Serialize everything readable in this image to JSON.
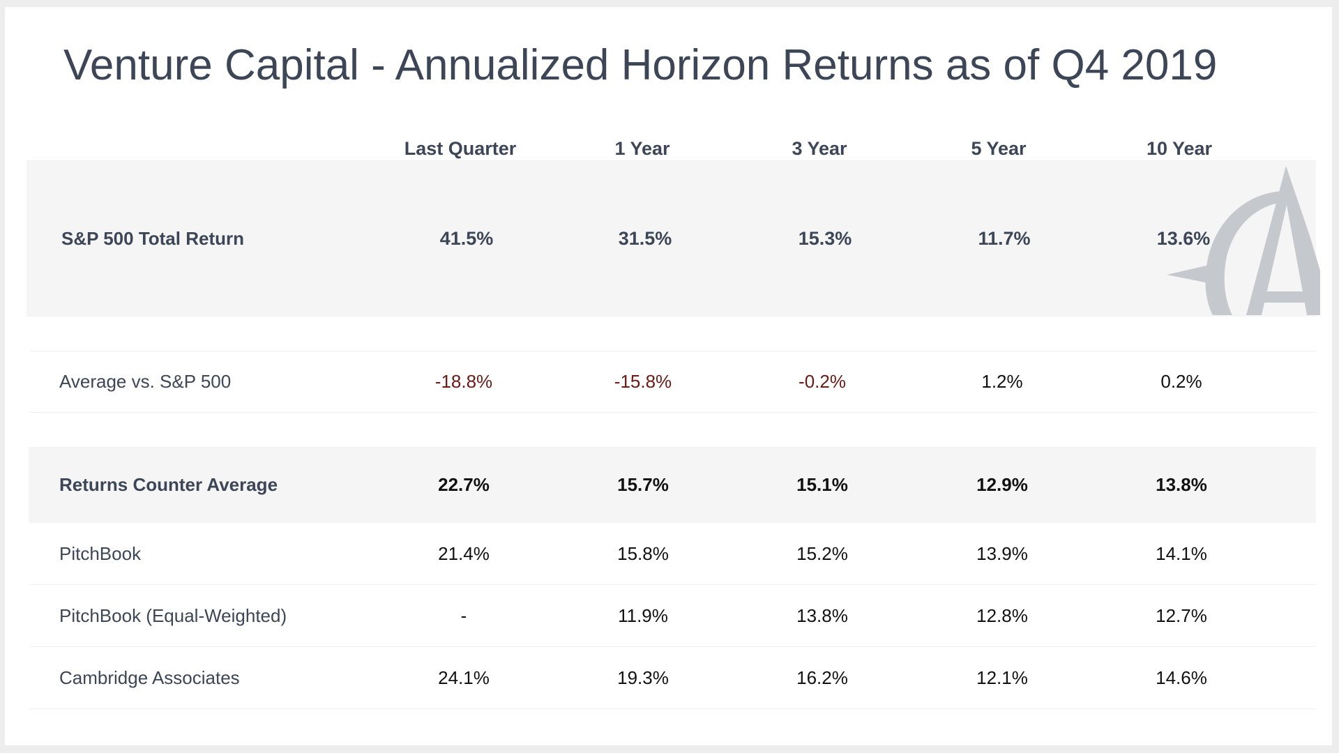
{
  "title": "Venture Capital - Annualized Horizon Returns as of Q4 2019",
  "columns": [
    "Last Quarter",
    "1 Year",
    "3 Year",
    "5 Year",
    "10 Year"
  ],
  "rows": [
    {
      "label": "S&P 500 Total Return",
      "values": [
        "41.5%",
        "31.5%",
        "15.3%",
        "11.7%",
        "13.6%"
      ],
      "style": "header"
    },
    {
      "label": "Average vs. S&P 500",
      "values": [
        "-18.8%",
        "-15.8%",
        "-0.2%",
        "1.2%",
        "0.2%"
      ],
      "style": "comparison"
    },
    {
      "label": "Returns Counter Average",
      "values": [
        "22.7%",
        "15.7%",
        "15.1%",
        "12.9%",
        "13.8%"
      ],
      "style": "bold"
    },
    {
      "label": "PitchBook",
      "values": [
        "21.4%",
        "15.8%",
        "15.2%",
        "13.9%",
        "14.1%"
      ],
      "style": "normal"
    },
    {
      "label": "PitchBook (Equal-Weighted)",
      "values": [
        "-",
        "11.9%",
        "13.8%",
        "12.8%",
        "12.7%"
      ],
      "style": "normal"
    },
    {
      "label": "Cambridge Associates",
      "values": [
        "24.1%",
        "19.3%",
        "16.2%",
        "12.1%",
        "14.6%"
      ],
      "style": "normal"
    }
  ],
  "colors": {
    "text": "#3c4657",
    "negative": "#6b1a14",
    "band": "#f5f5f5",
    "logo": "#c5c9cd"
  },
  "logo": {
    "icon": "compass-a-logo-icon"
  }
}
